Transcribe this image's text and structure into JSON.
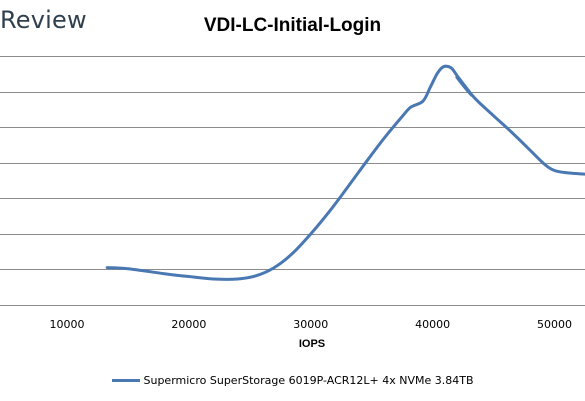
{
  "brand": {
    "text": "Review"
  },
  "colors": {
    "series": "#4a78b3",
    "grid": "#8c8c8c",
    "brand": "#2f3f4d"
  },
  "chart_data": {
    "type": "line",
    "title": "VDI-LC-Initial-Login",
    "xlabel": "IOPS",
    "ylabel": "",
    "xlim": [
      4500,
      52500
    ],
    "x_ticks": [
      10000,
      20000,
      30000,
      40000,
      50000
    ],
    "x_tick_labels": [
      "10000",
      "20000",
      "30000",
      "40000",
      "50000"
    ],
    "ylim": [
      0,
      7
    ],
    "y_ticks": [
      0,
      1,
      2,
      3,
      4,
      5,
      6,
      7
    ],
    "y_tick_labels": [],
    "grid": true,
    "legend": "bottom",
    "series": [
      {
        "name": "Supermicro SuperStorage 6019P-ACR12L+ 4x NVMe 3.84TB",
        "color": "#4a78b3",
        "points": [
          [
            13300,
            1.05
          ],
          [
            15000,
            1.02
          ],
          [
            18000,
            0.88
          ],
          [
            20000,
            0.8
          ],
          [
            22000,
            0.73
          ],
          [
            24000,
            0.73
          ],
          [
            25500,
            0.82
          ],
          [
            27000,
            1.05
          ],
          [
            28500,
            1.45
          ],
          [
            30000,
            2.0
          ],
          [
            31500,
            2.62
          ],
          [
            33000,
            3.3
          ],
          [
            34500,
            4.0
          ],
          [
            36000,
            4.68
          ],
          [
            37500,
            5.3
          ],
          [
            38200,
            5.56
          ],
          [
            39200,
            5.73
          ],
          [
            39800,
            6.12
          ],
          [
            40400,
            6.52
          ],
          [
            40900,
            6.7
          ],
          [
            41500,
            6.67
          ],
          [
            42000,
            6.45
          ],
          [
            42600,
            6.18
          ],
          [
            43200,
            5.9
          ],
          [
            42800,
            6.05
          ],
          [
            42000,
            6.4
          ],
          [
            43500,
            5.8
          ],
          [
            45000,
            5.32
          ],
          [
            46500,
            4.85
          ],
          [
            48000,
            4.35
          ],
          [
            49200,
            3.95
          ],
          [
            50000,
            3.78
          ],
          [
            51000,
            3.72
          ],
          [
            52500,
            3.68
          ]
        ]
      }
    ]
  }
}
